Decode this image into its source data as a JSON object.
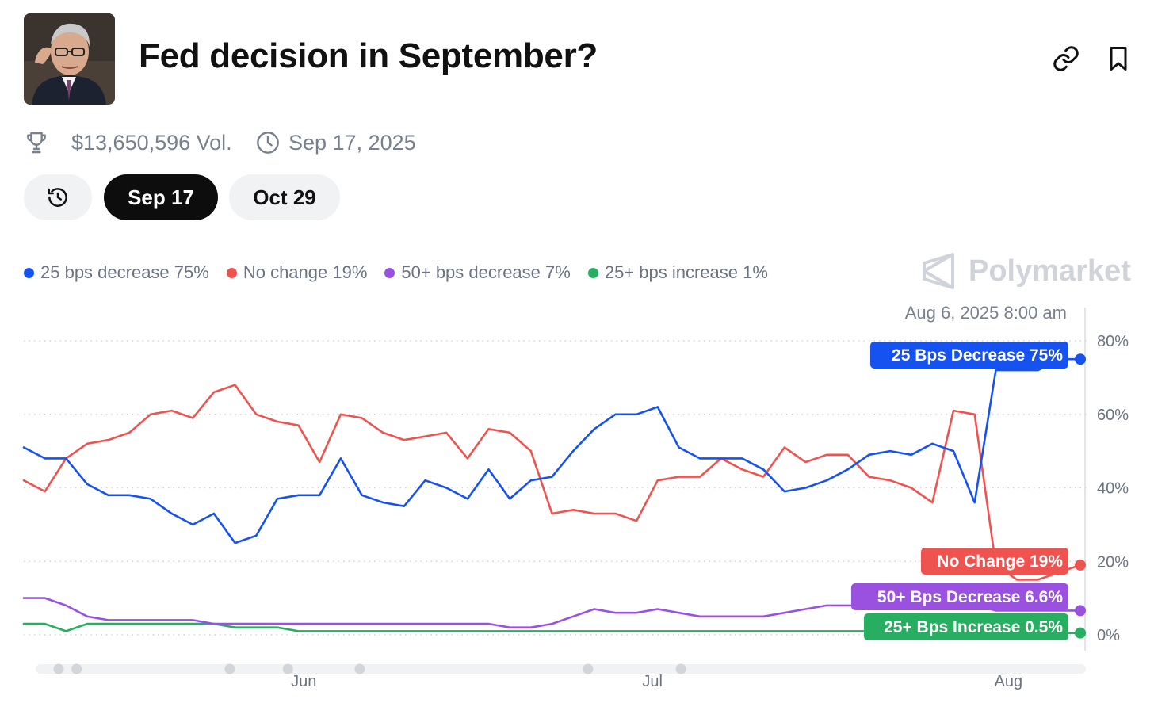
{
  "header": {
    "title": "Fed decision in September?",
    "link_icon": "link-icon",
    "bookmark_icon": "bookmark-icon",
    "avatar_icon": "person-portrait"
  },
  "meta": {
    "volume": "$13,650,596 Vol.",
    "end_date": "Sep 17, 2025"
  },
  "tabs": {
    "history_icon": "history-icon",
    "items": [
      "Sep 17",
      "Oct 29"
    ],
    "active": "Sep 17"
  },
  "brand": {
    "name": "Polymarket"
  },
  "legend": [
    {
      "label": "25 bps decrease 75%",
      "color": "#1652f0"
    },
    {
      "label": "No change 19%",
      "color": "#ef5350"
    },
    {
      "label": "50+ bps decrease 7%",
      "color": "#9b51e0"
    },
    {
      "label": "25+ bps increase 1%",
      "color": "#27ae60"
    }
  ],
  "timestamp": "Aug 6, 2025 8:00 am",
  "chart_data": {
    "type": "line",
    "title": "Fed decision in September?",
    "xlabel": "",
    "ylabel": "",
    "x": [
      0,
      2,
      4,
      6,
      8,
      10,
      12,
      14,
      16,
      18,
      20,
      22,
      24,
      26,
      28,
      30,
      32,
      34,
      36,
      38,
      40,
      42,
      44,
      46,
      48,
      50,
      52,
      54,
      56,
      58,
      60,
      62,
      64,
      66,
      68,
      70,
      72,
      74,
      76,
      78,
      80,
      82,
      84,
      86,
      88,
      90,
      92,
      94,
      96,
      98,
      100
    ],
    "x_ticks": [
      {
        "label": "Jun",
        "pos": 26.5
      },
      {
        "label": "Jul",
        "pos": 59.5
      },
      {
        "label": "Aug",
        "pos": 93.2
      }
    ],
    "y_ticks": [
      "80%",
      "60%",
      "40%",
      "20%",
      "0%"
    ],
    "ylim": [
      0,
      80
    ],
    "series": [
      {
        "name": "25 bps decrease",
        "color": "#1652f0",
        "end_label": "25 Bps Decrease 75%",
        "values": [
          51,
          48,
          48,
          41,
          38,
          38,
          37,
          33,
          30,
          33,
          25,
          27,
          37,
          38,
          38,
          48,
          38,
          36,
          35,
          42,
          40,
          37,
          45,
          37,
          42,
          43,
          50,
          56,
          60,
          60,
          62,
          51,
          48,
          48,
          48,
          45,
          39,
          40,
          42,
          45,
          49,
          50,
          49,
          52,
          50,
          36,
          72,
          72,
          72,
          75,
          75
        ]
      },
      {
        "name": "No change",
        "color": "#ef5350",
        "end_label": "No Change 19%",
        "values": [
          42,
          39,
          48,
          52,
          53,
          55,
          60,
          61,
          59,
          66,
          68,
          60,
          58,
          57,
          47,
          60,
          59,
          55,
          53,
          54,
          55,
          48,
          56,
          55,
          50,
          33,
          34,
          33,
          33,
          31,
          42,
          43,
          43,
          48,
          45,
          43,
          51,
          47,
          49,
          49,
          43,
          42,
          40,
          36,
          61,
          60,
          19,
          15,
          15,
          17,
          19
        ]
      },
      {
        "name": "50+ bps decrease",
        "color": "#9b51e0",
        "end_label": "50+ Bps Decrease 6.6%",
        "values": [
          10,
          10,
          8,
          5,
          4,
          4,
          4,
          4,
          4,
          3,
          3,
          3,
          3,
          3,
          3,
          3,
          3,
          3,
          3,
          3,
          3,
          3,
          3,
          2,
          2,
          3,
          5,
          7,
          6,
          6,
          7,
          6,
          5,
          5,
          5,
          5,
          6,
          7,
          8,
          8,
          8,
          8,
          8,
          8,
          8,
          8,
          6.6,
          6.6,
          6.6,
          6.6,
          6.6
        ]
      },
      {
        "name": "25+ bps increase",
        "color": "#27ae60",
        "end_label": "25+ Bps Increase 0.5%",
        "values": [
          3,
          3,
          1,
          3,
          3,
          3,
          3,
          3,
          3,
          3,
          2,
          2,
          2,
          1,
          1,
          1,
          1,
          1,
          1,
          1,
          1,
          1,
          1,
          1,
          1,
          1,
          1,
          1,
          1,
          1,
          1,
          1,
          1,
          1,
          1,
          1,
          1,
          1,
          1,
          1,
          1,
          1,
          1,
          1,
          1,
          1,
          0.5,
          0.5,
          0.5,
          0.5,
          0.5
        ]
      }
    ],
    "scrubber_markers": [
      3.3,
      5.0,
      19.5,
      25.0,
      31.8,
      53.4,
      62.2
    ]
  }
}
